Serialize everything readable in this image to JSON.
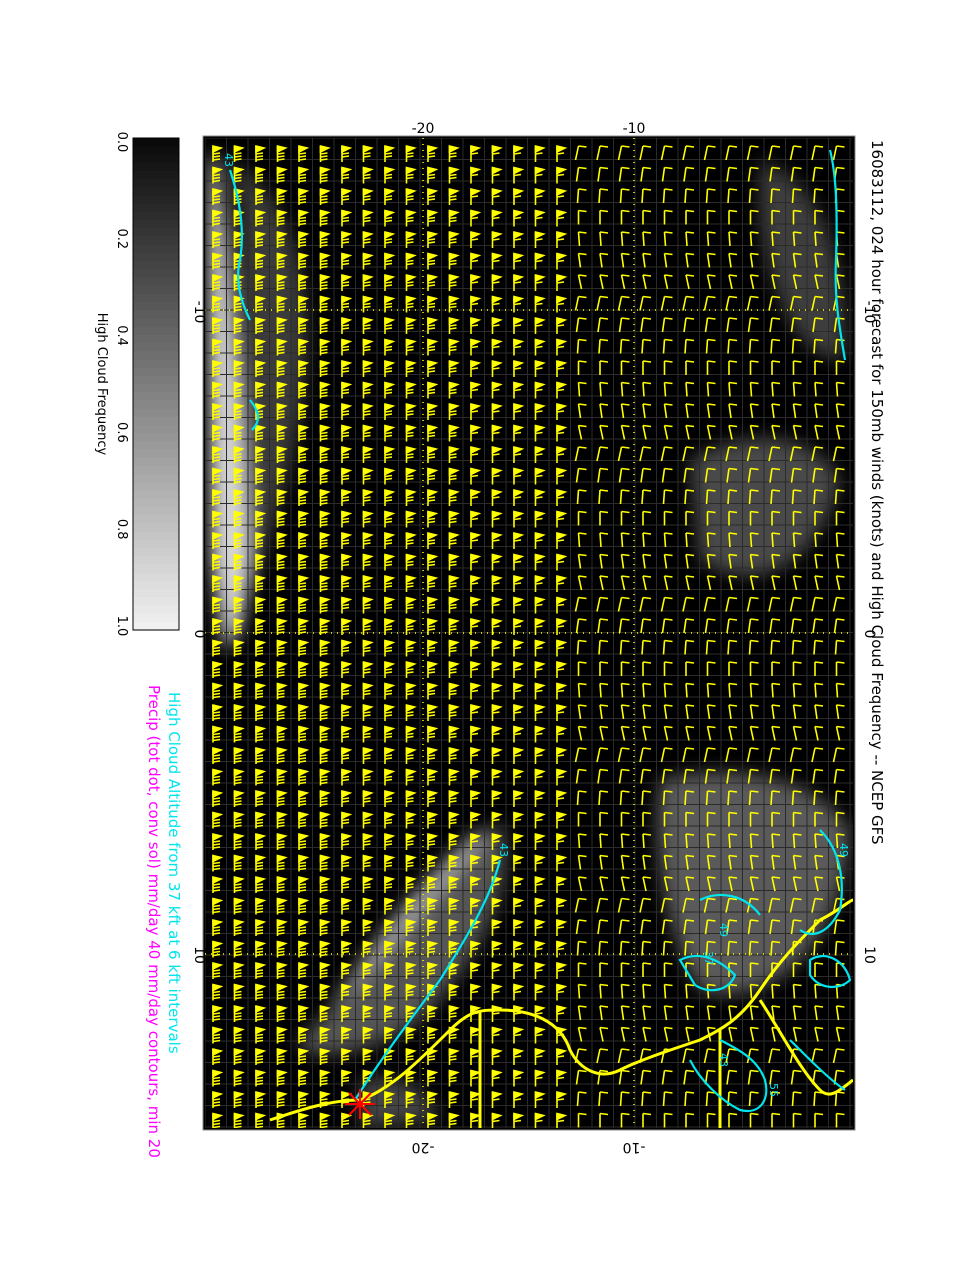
{
  "title": "16083112, 024 hour forecast for 150mb winds (knots) and High Cloud Frequency -- NCEP GFS",
  "caption_cloud_altitude": "High Cloud Altitude from 37 kft at 6 kft intervals",
  "caption_precip": "Precip (tot dot, conv sol) mm/day 40 mm/day contours, min 20",
  "colorbar": {
    "label": "High Cloud Frequency",
    "ticks": [
      "0.0",
      "0.2",
      "0.4",
      "0.6",
      "0.8",
      "1.0"
    ]
  },
  "map": {
    "lon_ticks": [
      "-10",
      "0",
      "10"
    ],
    "lat_ticks": [
      "-20",
      "-10"
    ],
    "contour_labels": [
      "43",
      "49",
      "37",
      "55",
      "49",
      "43",
      "43"
    ],
    "marker": "*"
  },
  "colors": {
    "background": "#000000",
    "wind_barbs": "#ffff00",
    "coastline": "#ffff00",
    "cloud_altitude_contours": "#00e5ee",
    "precip_caption": "#ff00ff",
    "marker": "#ff0000"
  }
}
